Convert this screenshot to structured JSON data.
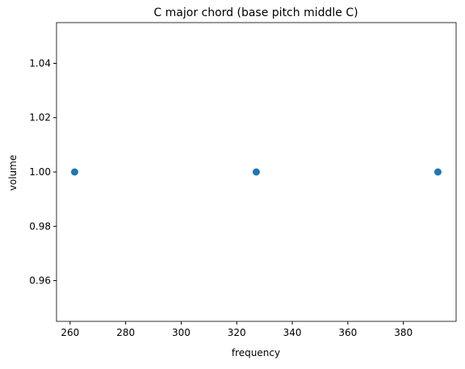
{
  "chart_data": {
    "type": "scatter",
    "title": "C major chord (base pitch middle C)",
    "x_label": "frequency",
    "y_label": "volume",
    "series": [
      {
        "color": "#1f77b4",
        "x": [
          261.63,
          327.03,
          392.44
        ],
        "values": [
          1,
          1,
          1
        ]
      }
    ],
    "xlim": [
      255.1,
      399.0
    ],
    "xticks": [
      260,
      280,
      300,
      320,
      340,
      360,
      380
    ],
    "ylim": [
      0.945,
      1.055
    ],
    "yticks": [
      0.96,
      0.98,
      {
        "value": 1,
        "label": "1.00"
      },
      1.02,
      1.04
    ],
    "grid": false
  }
}
